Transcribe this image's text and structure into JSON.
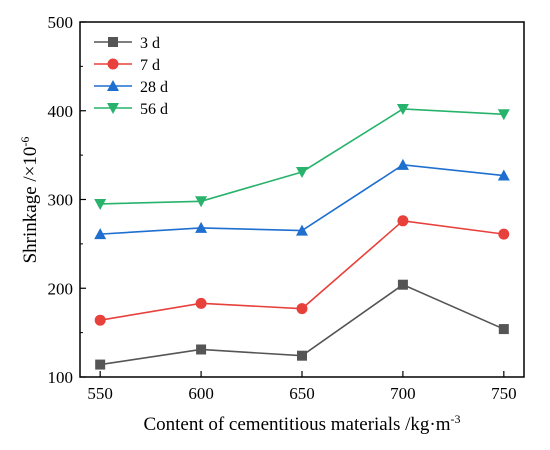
{
  "chart_data": {
    "type": "line",
    "xlabel": "Content of cementitious materials /kg·m",
    "xlabel_sup": "-3",
    "ylabel": "Shrinkage /×10",
    "ylabel_sup": "-6",
    "x": [
      550,
      600,
      650,
      700,
      750
    ],
    "x_ticks": [
      550,
      600,
      650,
      700,
      750
    ],
    "y_ticks": [
      100,
      200,
      300,
      400,
      500
    ],
    "xlim": [
      540,
      760
    ],
    "ylim": [
      100,
      500
    ],
    "grid": false,
    "legend_position": "top-left",
    "series": [
      {
        "name": "3 d",
        "color": "#555555",
        "marker": "square",
        "values": [
          114,
          131,
          124,
          204,
          154
        ]
      },
      {
        "name": "7 d",
        "color": "#e8403a",
        "marker": "circle",
        "values": [
          164,
          183,
          177,
          276,
          261
        ]
      },
      {
        "name": "28 d",
        "color": "#1f6fd0",
        "marker": "triangle-up",
        "values": [
          261,
          268,
          265,
          339,
          327
        ]
      },
      {
        "name": "56 d",
        "color": "#27b36b",
        "marker": "triangle-down",
        "values": [
          295,
          298,
          331,
          402,
          396
        ]
      }
    ]
  }
}
